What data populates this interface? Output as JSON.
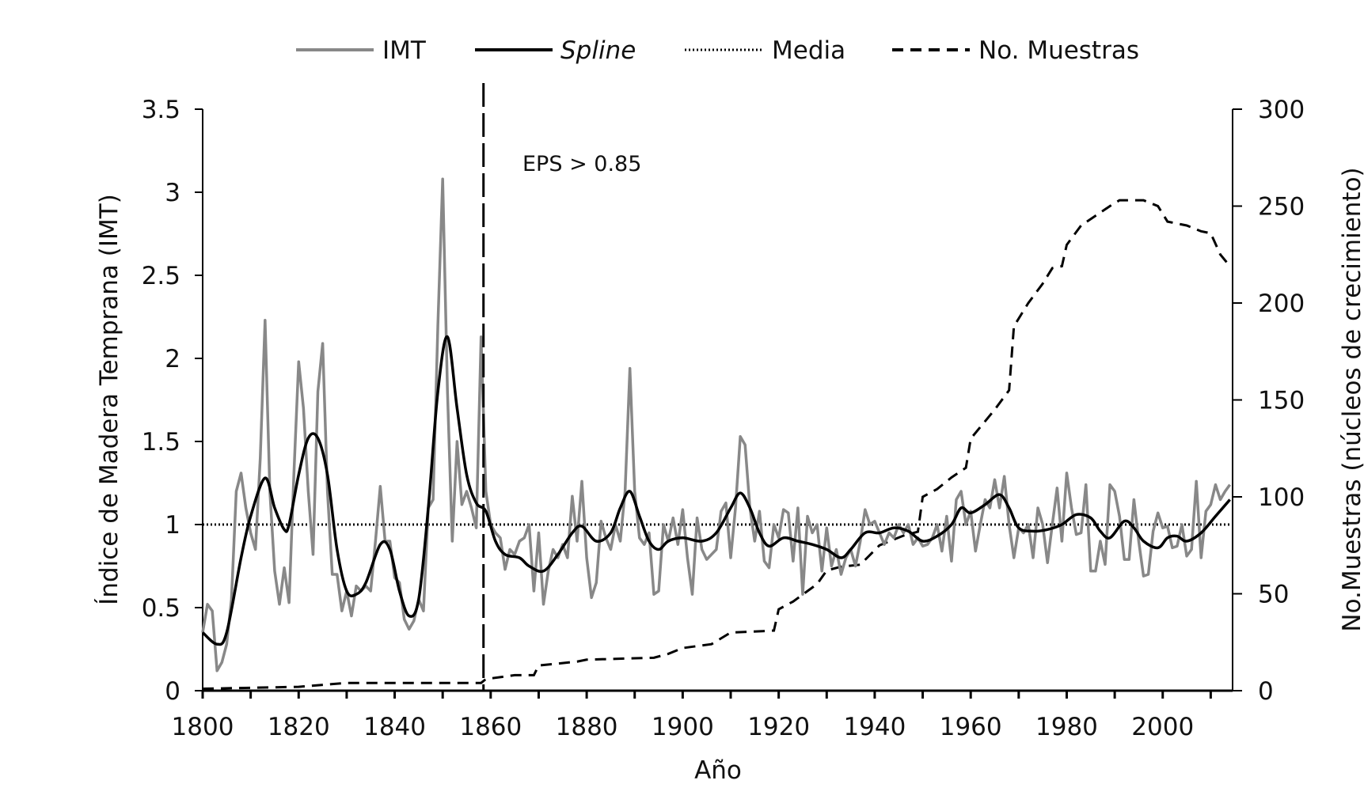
{
  "chart_data": {
    "type": "line",
    "xlabel": "Año",
    "ylabel": "Índice de Madera Temprana (IMT)",
    "y2label": "No.Muestras (núcleos de crecimiento)",
    "xlim": [
      1800,
      2014
    ],
    "ylim": [
      0,
      3.5
    ],
    "y2lim": [
      0,
      300
    ],
    "xticks": [
      1800,
      1820,
      1840,
      1860,
      1880,
      1900,
      1920,
      1940,
      1960,
      1980,
      2000
    ],
    "yticks": [
      "0",
      "0.5",
      "1",
      "1.5",
      "2",
      "2.5",
      "3",
      "3.5"
    ],
    "y2ticks": [
      "0",
      "50",
      "100",
      "150",
      "200",
      "250",
      "300"
    ],
    "legend": [
      "IMT",
      "Spline",
      "Media",
      "No. Muestras"
    ],
    "legend_position": "top",
    "annotation": "EPS > 0.85",
    "eps_year": 1858.5,
    "media": 1.0,
    "imt_start_year": 1800,
    "imt": [
      0.35,
      0.52,
      0.48,
      0.12,
      0.17,
      0.28,
      0.55,
      1.2,
      1.31,
      1.1,
      0.95,
      0.85,
      1.4,
      2.23,
      1.2,
      0.72,
      0.52,
      0.74,
      0.53,
      1.3,
      1.98,
      1.7,
      1.2,
      0.82,
      1.8,
      2.09,
      1.2,
      0.7,
      0.7,
      0.48,
      0.6,
      0.45,
      0.63,
      0.6,
      0.63,
      0.6,
      0.9,
      1.23,
      0.9,
      0.9,
      0.68,
      0.65,
      0.43,
      0.37,
      0.42,
      0.55,
      0.48,
      1.1,
      1.15,
      2.2,
      3.08,
      1.8,
      0.9,
      1.5,
      1.12,
      1.2,
      1.1,
      0.98,
      2.13,
      1.2,
      1.0,
      0.95,
      0.92,
      0.73,
      0.85,
      0.82,
      0.9,
      0.92,
      1.0,
      0.6,
      0.95,
      0.52,
      0.72,
      0.85,
      0.8,
      0.88,
      0.8,
      1.17,
      0.9,
      1.26,
      0.8,
      0.56,
      0.65,
      1.02,
      0.92,
      0.85,
      1.0,
      0.9,
      1.2,
      1.94,
      1.2,
      0.92,
      0.88,
      0.95,
      0.58,
      0.6,
      1.0,
      0.9,
      1.04,
      0.88,
      1.09,
      0.8,
      0.58,
      1.04,
      0.85,
      0.79,
      0.82,
      0.85,
      1.08,
      1.13,
      0.8,
      1.1,
      1.53,
      1.48,
      1.1,
      0.9,
      1.08,
      0.78,
      0.74,
      1.0,
      0.92,
      1.09,
      1.07,
      0.78,
      1.1,
      0.58,
      1.05,
      0.95,
      1.0,
      0.72,
      0.98,
      0.75,
      0.85,
      0.7,
      0.8,
      0.85,
      0.75,
      0.9,
      1.09,
      1.0,
      1.02,
      0.95,
      0.88,
      0.95,
      0.92,
      1.0,
      0.95,
      1.0,
      0.88,
      0.92,
      0.87,
      0.88,
      0.92,
      1.0,
      0.84,
      1.05,
      0.78,
      1.15,
      1.2,
      1.0,
      1.08,
      0.84,
      1.0,
      1.15,
      1.1,
      1.27,
      1.1,
      1.29,
      1.0,
      0.8,
      0.98,
      0.95,
      1.0,
      0.8,
      1.1,
      1.0,
      0.77,
      1.0,
      1.22,
      0.9,
      1.31,
      1.1,
      0.94,
      0.95,
      1.24,
      0.72,
      0.72,
      0.9,
      0.76,
      1.24,
      1.2,
      1.05,
      0.79,
      0.79,
      1.15,
      0.9,
      0.69,
      0.7,
      0.96,
      1.07,
      0.98,
      0.99,
      0.86,
      0.87,
      1.0,
      0.81,
      0.85,
      1.26,
      0.8,
      1.08,
      1.12,
      1.24,
      1.15,
      1.2,
      1.24
    ],
    "spline": [
      [
        1800,
        0.35
      ],
      [
        1803,
        0.28
      ],
      [
        1805,
        0.35
      ],
      [
        1808,
        0.8
      ],
      [
        1810,
        1.05
      ],
      [
        1813,
        1.28
      ],
      [
        1815,
        1.1
      ],
      [
        1817,
        0.97
      ],
      [
        1818,
        1.0
      ],
      [
        1820,
        1.3
      ],
      [
        1822,
        1.52
      ],
      [
        1824,
        1.52
      ],
      [
        1826,
        1.3
      ],
      [
        1828,
        0.85
      ],
      [
        1830,
        0.6
      ],
      [
        1832,
        0.58
      ],
      [
        1834,
        0.65
      ],
      [
        1837,
        0.88
      ],
      [
        1839,
        0.85
      ],
      [
        1841,
        0.6
      ],
      [
        1843,
        0.45
      ],
      [
        1845,
        0.55
      ],
      [
        1847,
        1.1
      ],
      [
        1849,
        1.8
      ],
      [
        1851,
        2.13
      ],
      [
        1853,
        1.7
      ],
      [
        1855,
        1.3
      ],
      [
        1857,
        1.13
      ],
      [
        1859,
        1.08
      ],
      [
        1861,
        0.9
      ],
      [
        1863,
        0.82
      ],
      [
        1866,
        0.8
      ],
      [
        1868,
        0.75
      ],
      [
        1871,
        0.72
      ],
      [
        1874,
        0.82
      ],
      [
        1877,
        0.95
      ],
      [
        1879,
        0.99
      ],
      [
        1882,
        0.9
      ],
      [
        1885,
        0.95
      ],
      [
        1887,
        1.1
      ],
      [
        1889,
        1.2
      ],
      [
        1891,
        1.05
      ],
      [
        1893,
        0.9
      ],
      [
        1895,
        0.85
      ],
      [
        1897,
        0.9
      ],
      [
        1900,
        0.92
      ],
      [
        1904,
        0.9
      ],
      [
        1907,
        0.95
      ],
      [
        1910,
        1.1
      ],
      [
        1912,
        1.19
      ],
      [
        1914,
        1.1
      ],
      [
        1916,
        0.95
      ],
      [
        1918,
        0.87
      ],
      [
        1921,
        0.92
      ],
      [
        1924,
        0.9
      ],
      [
        1927,
        0.88
      ],
      [
        1930,
        0.85
      ],
      [
        1933,
        0.8
      ],
      [
        1935,
        0.85
      ],
      [
        1938,
        0.95
      ],
      [
        1941,
        0.95
      ],
      [
        1944,
        0.98
      ],
      [
        1947,
        0.96
      ],
      [
        1950,
        0.9
      ],
      [
        1953,
        0.93
      ],
      [
        1956,
        1.0
      ],
      [
        1958,
        1.1
      ],
      [
        1960,
        1.07
      ],
      [
        1963,
        1.12
      ],
      [
        1966,
        1.18
      ],
      [
        1968,
        1.1
      ],
      [
        1970,
        0.98
      ],
      [
        1973,
        0.96
      ],
      [
        1976,
        0.97
      ],
      [
        1979,
        1.0
      ],
      [
        1982,
        1.06
      ],
      [
        1985,
        1.04
      ],
      [
        1987,
        0.96
      ],
      [
        1989,
        0.92
      ],
      [
        1992,
        1.02
      ],
      [
        1994,
        0.98
      ],
      [
        1996,
        0.9
      ],
      [
        1999,
        0.86
      ],
      [
        2001,
        0.92
      ],
      [
        2003,
        0.93
      ],
      [
        2005,
        0.9
      ],
      [
        2008,
        0.95
      ],
      [
        2011,
        1.05
      ],
      [
        2014,
        1.15
      ]
    ],
    "samples": [
      [
        1800,
        1
      ],
      [
        1820,
        2
      ],
      [
        1830,
        4
      ],
      [
        1858,
        4
      ],
      [
        1859,
        6
      ],
      [
        1862,
        7
      ],
      [
        1865,
        8
      ],
      [
        1869,
        8
      ],
      [
        1870,
        13
      ],
      [
        1878,
        15
      ],
      [
        1880,
        16
      ],
      [
        1894,
        17
      ],
      [
        1897,
        19
      ],
      [
        1900,
        22
      ],
      [
        1906,
        24
      ],
      [
        1910,
        30
      ],
      [
        1919,
        31
      ],
      [
        1920,
        42
      ],
      [
        1923,
        46
      ],
      [
        1928,
        55
      ],
      [
        1930,
        62
      ],
      [
        1933,
        64
      ],
      [
        1937,
        65
      ],
      [
        1941,
        75
      ],
      [
        1946,
        80
      ],
      [
        1949,
        82
      ],
      [
        1950,
        100
      ],
      [
        1953,
        104
      ],
      [
        1956,
        110
      ],
      [
        1959,
        115
      ],
      [
        1960,
        130
      ],
      [
        1962,
        136
      ],
      [
        1965,
        145
      ],
      [
        1968,
        155
      ],
      [
        1969,
        188
      ],
      [
        1972,
        200
      ],
      [
        1975,
        210
      ],
      [
        1977,
        218
      ],
      [
        1979,
        219
      ],
      [
        1980,
        230
      ],
      [
        1983,
        240
      ],
      [
        1986,
        245
      ],
      [
        1989,
        250
      ],
      [
        1991,
        253
      ],
      [
        1996,
        253
      ],
      [
        1999,
        250
      ],
      [
        2001,
        242
      ],
      [
        2005,
        240
      ],
      [
        2008,
        237
      ],
      [
        2010,
        236
      ],
      [
        2012,
        225
      ],
      [
        2014,
        219
      ]
    ],
    "colors": {
      "imt": "#888888",
      "spline": "#000000",
      "media": "#000000",
      "samples": "#000000"
    }
  }
}
